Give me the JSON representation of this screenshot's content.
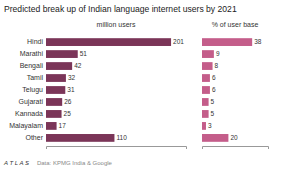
{
  "chart_data": [
    {
      "type": "bar",
      "orientation": "horizontal",
      "title": "Predicted break up of Indian language internet users by 2021",
      "xlabel": "million users",
      "categories": [
        "Hindi",
        "Marathi",
        "Bengali",
        "Tamil",
        "Telugu",
        "Gujarati",
        "Kannada",
        "Malayalam",
        "Other"
      ],
      "values": [
        201,
        51,
        42,
        32,
        31,
        26,
        25,
        17,
        110
      ],
      "color": "#7b3558",
      "xlim": [
        0,
        225
      ],
      "data_labels": true,
      "tick_labels": "y",
      "annotations": [
        "A T L A S",
        "Data: KPMG India & Google"
      ]
    },
    {
      "type": "bar",
      "orientation": "horizontal",
      "xlabel": "% of user base",
      "categories": [
        "Hindi",
        "Marathi",
        "Bengali",
        "Tamil",
        "Telugu",
        "Gujarati",
        "Kannada",
        "Malayalam",
        "Other"
      ],
      "values": [
        38,
        9,
        8,
        6,
        6,
        5,
        5,
        3,
        20
      ],
      "color": "#c45d8a",
      "xlim": [
        0,
        50
      ],
      "data_labels": true,
      "tick_labels": false
    }
  ]
}
